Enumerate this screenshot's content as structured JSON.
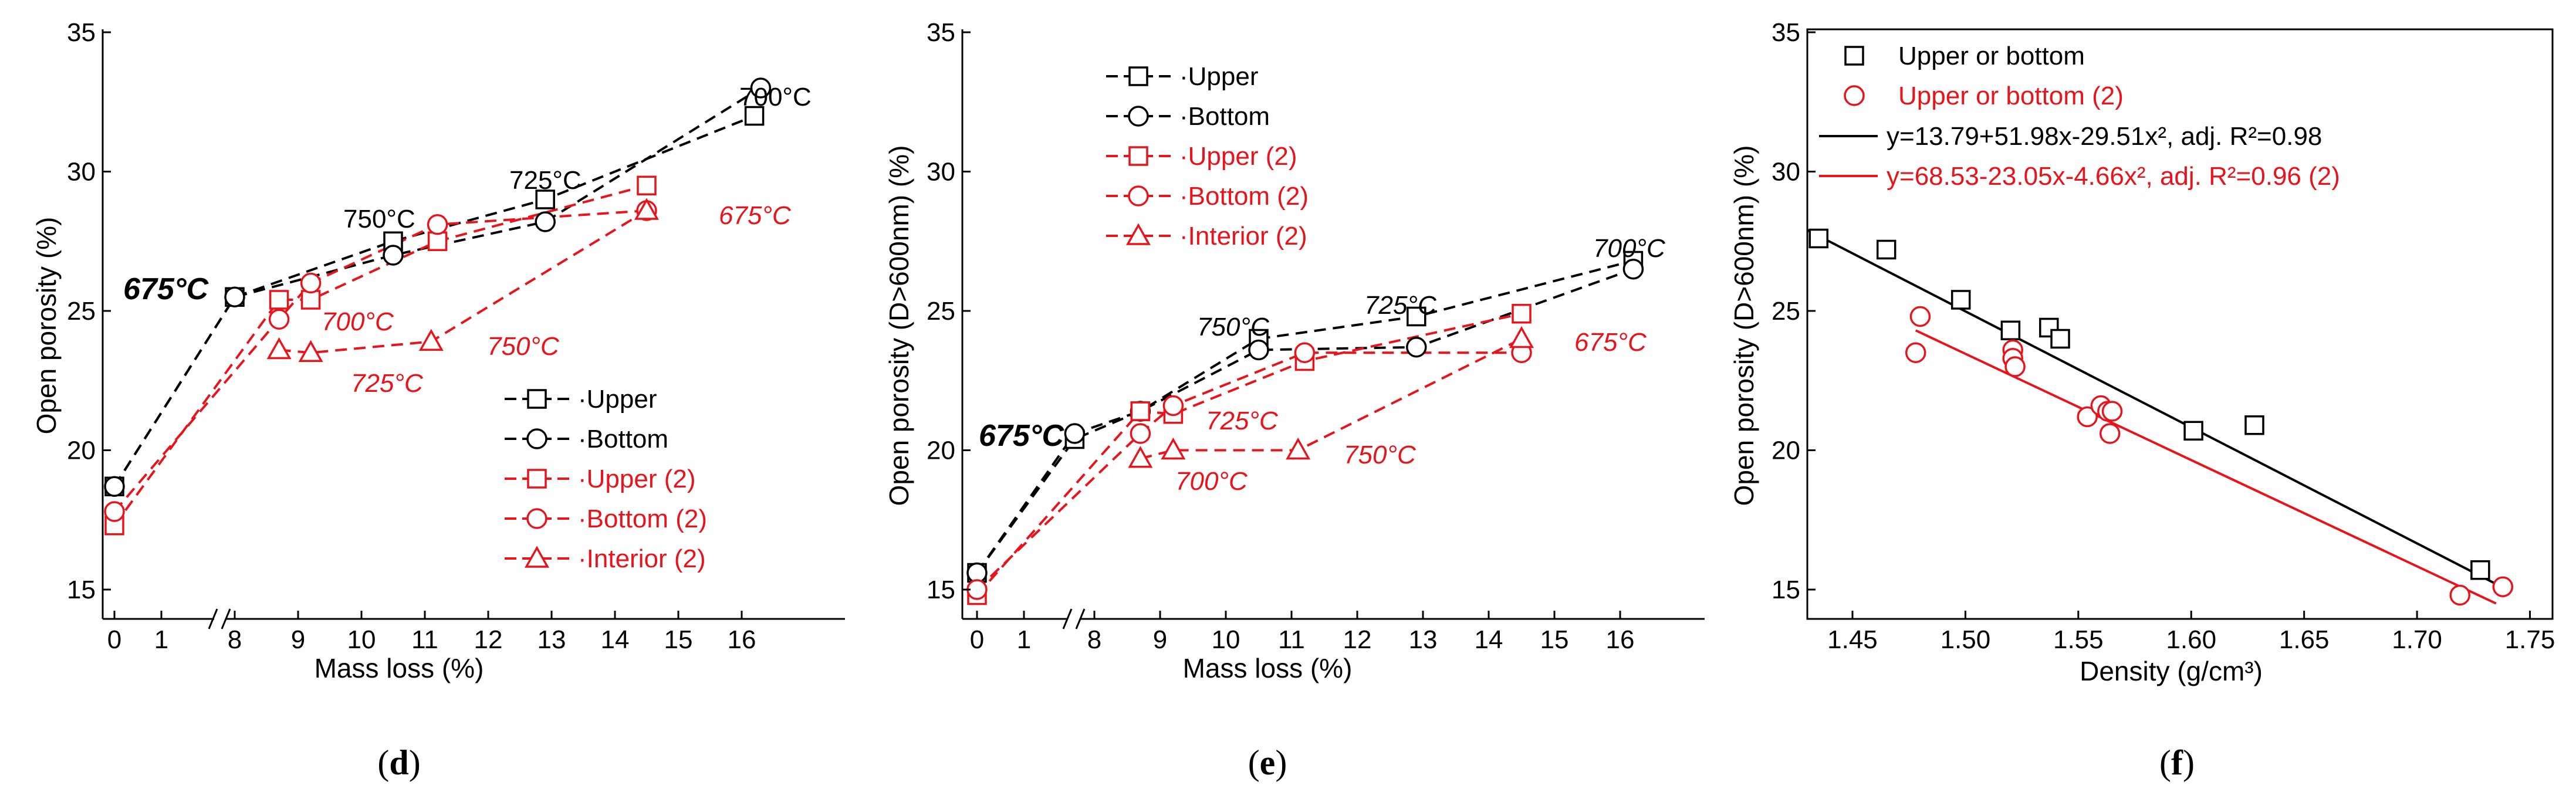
{
  "colors": {
    "black": "#000000",
    "red": "#e8141c"
  },
  "chart_data": [
    {
      "type": "line",
      "panel": "d",
      "panel_label": "(d)",
      "xlabel": "Mass loss (%)",
      "ylabel": "Open porosity (%)",
      "ylim": [
        15,
        35
      ],
      "yticks": [
        "15",
        "20",
        "25",
        "30",
        "35"
      ],
      "yticks_values": [
        15,
        20,
        25,
        30,
        35
      ],
      "xticks": [
        "0",
        "1",
        "8",
        "9",
        "10",
        "11",
        "12",
        "13",
        "14",
        "15",
        "16"
      ],
      "xticks_values": [
        0,
        1,
        8,
        9,
        10,
        11,
        12,
        13,
        14,
        15,
        16
      ],
      "axis_break": "between 1 and 8",
      "legend_position": "bottom-right",
      "series": [
        {
          "name": "Upper",
          "marker": "square",
          "color": "#000000",
          "x": [
            0,
            8,
            10.5,
            12.9,
            16.2
          ],
          "y": [
            18.7,
            25.5,
            27.5,
            29.0,
            32.0
          ]
        },
        {
          "name": "Bottom",
          "marker": "circle",
          "color": "#000000",
          "x": [
            0,
            8,
            10.5,
            12.9,
            16.3
          ],
          "y": [
            18.7,
            25.5,
            27.0,
            28.2,
            33.0
          ]
        },
        {
          "name": "Upper (2)",
          "marker": "square",
          "color": "#e8141c",
          "x": [
            0,
            8.7,
            9.2,
            11.2,
            14.5
          ],
          "y": [
            17.3,
            25.4,
            25.4,
            27.5,
            29.5
          ]
        },
        {
          "name": "Bottom (2)",
          "marker": "circle",
          "color": "#e8141c",
          "x": [
            0,
            8.7,
            9.2,
            11.2,
            14.5
          ],
          "y": [
            17.8,
            24.7,
            26.0,
            28.1,
            28.6
          ]
        },
        {
          "name": "Interior (2)",
          "marker": "triangle",
          "color": "#e8141c",
          "x": [
            8.7,
            9.2,
            11.1,
            14.5
          ],
          "y": [
            23.6,
            23.5,
            23.9,
            28.6
          ]
        }
      ],
      "annotations": [
        {
          "text": "675°C",
          "color": "#000000",
          "style": "big"
        },
        {
          "text": "750°C",
          "color": "#000000"
        },
        {
          "text": "725°C",
          "color": "#000000"
        },
        {
          "text": "700°C",
          "color": "#000000"
        },
        {
          "text": "700°C",
          "color": "#e8141c"
        },
        {
          "text": "725°C",
          "color": "#e8141c"
        },
        {
          "text": "750°C",
          "color": "#e8141c"
        },
        {
          "text": "675°C",
          "color": "#e8141c"
        }
      ]
    },
    {
      "type": "line",
      "panel": "e",
      "panel_label": "(e)",
      "xlabel": "Mass loss (%)",
      "ylabel": "Open porosity (D>600nm) (%)",
      "ylim": [
        15,
        35
      ],
      "yticks": [
        "15",
        "20",
        "25",
        "30",
        "35"
      ],
      "yticks_values": [
        15,
        20,
        25,
        30,
        35
      ],
      "xticks": [
        "0",
        "1",
        "8",
        "9",
        "10",
        "11",
        "12",
        "13",
        "14",
        "15",
        "16"
      ],
      "xticks_values": [
        0,
        1,
        8,
        9,
        10,
        11,
        12,
        13,
        14,
        15,
        16
      ],
      "axis_break": "between 1 and 8",
      "legend_position": "top-left",
      "series": [
        {
          "name": "Upper",
          "marker": "square",
          "color": "#000000",
          "x": [
            0,
            7.7,
            8.7,
            10.5,
            12.9,
            16.2
          ],
          "y": [
            15.6,
            20.4,
            21.4,
            24.0,
            24.8,
            26.8
          ]
        },
        {
          "name": "Bottom",
          "marker": "circle",
          "color": "#000000",
          "x": [
            0,
            7.7,
            8.7,
            10.5,
            12.9,
            16.2
          ],
          "y": [
            15.6,
            20.6,
            21.4,
            23.6,
            23.7,
            26.5
          ]
        },
        {
          "name": "Upper (2)",
          "marker": "square",
          "color": "#e8141c",
          "x": [
            0,
            8.7,
            9.2,
            11.2,
            14.5
          ],
          "y": [
            14.8,
            21.4,
            21.3,
            23.2,
            24.9
          ]
        },
        {
          "name": "Bottom (2)",
          "marker": "circle",
          "color": "#e8141c",
          "x": [
            0,
            8.7,
            9.2,
            11.2,
            14.5
          ],
          "y": [
            15.0,
            20.6,
            21.6,
            23.5,
            23.5
          ]
        },
        {
          "name": "Interior (2)",
          "marker": "triangle",
          "color": "#e8141c",
          "x": [
            8.7,
            9.2,
            11.1,
            14.5
          ],
          "y": [
            19.7,
            20.0,
            20.0,
            24.0
          ]
        }
      ],
      "annotations": [
        {
          "text": "675°C",
          "color": "#000000",
          "style": "big"
        },
        {
          "text": "750°C",
          "color": "#000000"
        },
        {
          "text": "725°C",
          "color": "#000000"
        },
        {
          "text": "700°C",
          "color": "#000000"
        },
        {
          "text": "725°C",
          "color": "#e8141c"
        },
        {
          "text": "700°C",
          "color": "#e8141c"
        },
        {
          "text": "750°C",
          "color": "#e8141c"
        },
        {
          "text": "675°C",
          "color": "#e8141c"
        }
      ]
    },
    {
      "type": "scatter",
      "panel": "f",
      "panel_label": "(f)",
      "xlabel": "Density (g/cm³)",
      "ylabel": "Open porosity (D>600nm) (%)",
      "xlim": [
        1.43,
        1.76
      ],
      "ylim": [
        15,
        35
      ],
      "yticks": [
        "15",
        "20",
        "25",
        "30",
        "35"
      ],
      "yticks_values": [
        15,
        20,
        25,
        30,
        35
      ],
      "xticks": [
        "1.45",
        "1.50",
        "1.55",
        "1.60",
        "1.65",
        "1.70",
        "1.75"
      ],
      "xticks_values": [
        1.45,
        1.5,
        1.55,
        1.6,
        1.65,
        1.7,
        1.75
      ],
      "legend_position": "top-left",
      "series": [
        {
          "name": "Upper or bottom",
          "marker": "square",
          "color": "#000000",
          "x": [
            1.435,
            1.465,
            1.498,
            1.52,
            1.537,
            1.542,
            1.601,
            1.628,
            1.728
          ],
          "y": [
            27.6,
            27.2,
            25.4,
            24.3,
            24.4,
            24.0,
            20.7,
            20.9,
            15.7
          ]
        },
        {
          "name": "Upper or bottom (2)",
          "marker": "circle",
          "color": "#e8141c",
          "x": [
            1.478,
            1.48,
            1.521,
            1.521,
            1.522,
            1.554,
            1.56,
            1.563,
            1.565,
            1.564,
            1.719,
            1.738
          ],
          "y": [
            23.5,
            24.8,
            23.6,
            23.3,
            23.0,
            21.2,
            21.6,
            21.4,
            21.4,
            20.6,
            14.8,
            15.1
          ]
        }
      ],
      "fits": [
        {
          "label": "y=13.79+51.98x-29.51x², adj. R²=0.98",
          "color": "#000000",
          "x": [
            1.43,
            1.735
          ],
          "y": [
            27.9,
            15.2
          ]
        },
        {
          "label": "y=68.53-23.05x-4.66x², adj. R²=0.96 (2)",
          "color": "#e8141c",
          "x": [
            1.478,
            1.735
          ],
          "y": [
            24.3,
            14.5
          ]
        }
      ]
    }
  ]
}
